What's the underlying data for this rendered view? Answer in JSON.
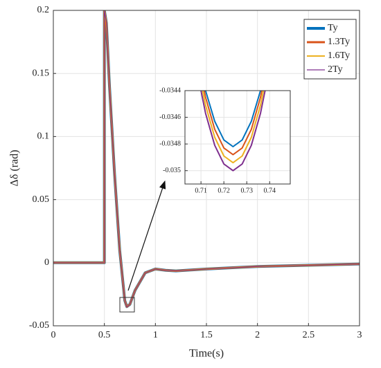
{
  "chart_data": [
    {
      "type": "line",
      "x_label": "Time(s)",
      "y_label": "Δδ (rad)",
      "x": [
        0,
        0.5,
        0.5,
        0.52,
        0.55,
        0.6,
        0.65,
        0.7,
        0.72,
        0.75,
        0.8,
        0.9,
        1.0,
        1.1,
        1.2,
        1.5,
        2.0,
        2.5,
        3.0
      ],
      "series": [
        {
          "name": "Ty",
          "color": "#0072bd",
          "values": [
            0,
            0,
            0.2,
            0.19,
            0.14,
            0.07,
            0.01,
            -0.03,
            -0.0348,
            -0.033,
            -0.022,
            -0.008,
            -0.005,
            -0.006,
            -0.0065,
            -0.005,
            -0.003,
            -0.002,
            -0.001
          ]
        },
        {
          "name": "1.3Ty",
          "color": "#d95319",
          "values": [
            0,
            0,
            0.2,
            0.19,
            0.14,
            0.07,
            0.01,
            -0.03,
            -0.0349,
            -0.033,
            -0.022,
            -0.008,
            -0.005,
            -0.006,
            -0.0065,
            -0.005,
            -0.003,
            -0.002,
            -0.001
          ]
        },
        {
          "name": "1.6Ty",
          "color": "#edb120",
          "values": [
            0,
            0,
            0.2,
            0.19,
            0.14,
            0.07,
            0.01,
            -0.03,
            -0.0349,
            -0.033,
            -0.022,
            -0.008,
            -0.005,
            -0.006,
            -0.0065,
            -0.005,
            -0.003,
            -0.002,
            -0.001
          ]
        },
        {
          "name": "2Ty",
          "color": "#7e2f8e",
          "values": [
            0,
            0,
            0.2,
            0.19,
            0.14,
            0.07,
            0.01,
            -0.03,
            -0.035,
            -0.033,
            -0.022,
            -0.008,
            -0.005,
            -0.006,
            -0.0065,
            -0.005,
            -0.003,
            -0.002,
            -0.001
          ]
        }
      ],
      "xlim": [
        0,
        3
      ],
      "ylim": [
        -0.05,
        0.2
      ],
      "xticks": [
        0,
        0.5,
        1,
        1.5,
        2,
        2.5,
        3
      ],
      "yticks": [
        -0.05,
        0,
        0.05,
        0.1,
        0.15,
        0.2
      ],
      "grid": true,
      "legend": "top-right"
    },
    {
      "type": "line",
      "x": [
        0.708,
        0.712,
        0.716,
        0.72,
        0.724,
        0.728,
        0.732,
        0.736,
        0.74
      ],
      "series": [
        {
          "color": "#0072bd",
          "values": [
            -0.03407,
            -0.0344,
            -0.03463,
            -0.03477,
            -0.03482,
            -0.03477,
            -0.03463,
            -0.0344,
            -0.03407
          ]
        },
        {
          "color": "#d95319",
          "values": [
            -0.03411,
            -0.03445,
            -0.03469,
            -0.03483,
            -0.03488,
            -0.03483,
            -0.03469,
            -0.03445,
            -0.03411
          ]
        },
        {
          "color": "#edb120",
          "values": [
            -0.03417,
            -0.03451,
            -0.03475,
            -0.03489,
            -0.03494,
            -0.03489,
            -0.03475,
            -0.03451,
            -0.03417
          ]
        },
        {
          "color": "#7e2f8e",
          "values": [
            -0.03423,
            -0.03457,
            -0.03481,
            -0.03495,
            -0.035,
            -0.03495,
            -0.03481,
            -0.03457,
            -0.03423
          ]
        }
      ],
      "xlim": [
        0.703,
        0.749
      ],
      "ylim": [
        -0.0351,
        -0.0344
      ],
      "xticks": [
        0.71,
        0.72,
        0.73,
        0.74
      ],
      "yticks": [
        -0.0344,
        -0.0346,
        -0.0348,
        -0.035
      ],
      "grid": true
    }
  ]
}
